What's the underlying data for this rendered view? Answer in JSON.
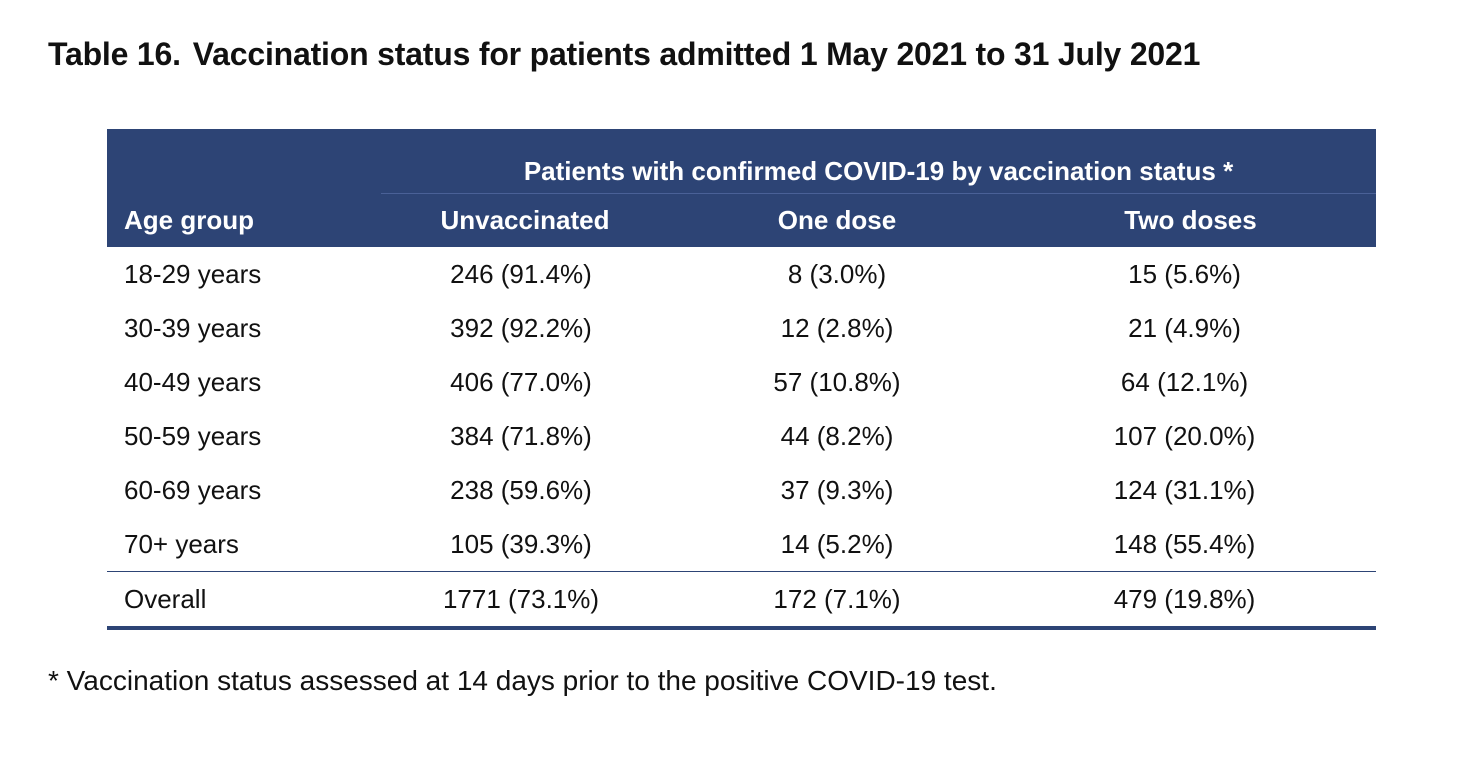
{
  "title": {
    "number": "Table 16.",
    "text": "Vaccination status for patients admitted 1 May 2021 to 31 July 2021"
  },
  "table": {
    "span_header": "Patients with confirmed COVID-19 by vaccination status *",
    "columns": [
      "Age group",
      "Unvaccinated",
      "One dose",
      "Two doses"
    ],
    "rows": [
      [
        "18-29 years",
        "246 (91.4%)",
        "8 (3.0%)",
        "15 (5.6%)"
      ],
      [
        "30-39 years",
        "392 (92.2%)",
        "12 (2.8%)",
        "21 (4.9%)"
      ],
      [
        "40-49 years",
        "406 (77.0%)",
        "57 (10.8%)",
        "64 (12.1%)"
      ],
      [
        "50-59 years",
        "384 (71.8%)",
        "44 (8.2%)",
        "107 (20.0%)"
      ],
      [
        "60-69 years",
        "238 (59.6%)",
        "37 (9.3%)",
        "124 (31.1%)"
      ],
      [
        "70+ years",
        "105 (39.3%)",
        "14 (5.2%)",
        "148 (55.4%)"
      ]
    ],
    "overall": [
      "Overall",
      "1771 (73.1%)",
      "172 (7.1%)",
      "479 (19.8%)"
    ]
  },
  "footnote": "* Vaccination status assessed at 14 days prior to the positive COVID-19 test.",
  "colors": {
    "header_bg": "#2d4475",
    "header_text": "#ffffff",
    "rule": "#2d4475"
  }
}
